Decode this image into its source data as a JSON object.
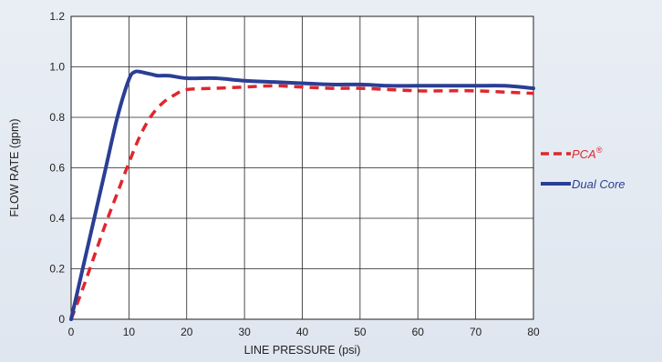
{
  "chart_data": {
    "type": "line",
    "xlabel": "LINE PRESSURE (psi)",
    "ylabel": "FLOW RATE (gpm)",
    "xlim": [
      0,
      80
    ],
    "ylim": [
      0,
      1.2
    ],
    "x_ticks": [
      "0",
      "10",
      "20",
      "30",
      "40",
      "50",
      "60",
      "70",
      "80"
    ],
    "y_ticks": [
      "0",
      "0.2",
      "0.4",
      "0.6",
      "0.8",
      "1.0",
      "1.2"
    ],
    "grid": true,
    "legend_position": "right",
    "series": [
      {
        "name": "PCA",
        "name_superscript": "®",
        "color": "#e0262d",
        "style": "dashed",
        "x": [
          0,
          2,
          4,
          6,
          8,
          10,
          12,
          14,
          16,
          18,
          20,
          25,
          30,
          35,
          40,
          45,
          50,
          55,
          60,
          65,
          70,
          75,
          80
        ],
        "y": [
          0,
          0.12,
          0.25,
          0.38,
          0.5,
          0.62,
          0.73,
          0.81,
          0.86,
          0.89,
          0.91,
          0.915,
          0.92,
          0.925,
          0.92,
          0.915,
          0.915,
          0.91,
          0.905,
          0.905,
          0.905,
          0.9,
          0.895
        ]
      },
      {
        "name": "Dual Core",
        "color": "#2a3e94",
        "style": "solid",
        "x": [
          0,
          2,
          4,
          6,
          8,
          10,
          11,
          12,
          13,
          14,
          15,
          17,
          20,
          25,
          30,
          35,
          40,
          45,
          50,
          55,
          60,
          65,
          70,
          75,
          80
        ],
        "y": [
          0,
          0.2,
          0.4,
          0.6,
          0.8,
          0.95,
          0.98,
          0.98,
          0.975,
          0.97,
          0.965,
          0.965,
          0.955,
          0.955,
          0.945,
          0.94,
          0.935,
          0.93,
          0.93,
          0.925,
          0.925,
          0.925,
          0.925,
          0.925,
          0.915
        ]
      }
    ]
  }
}
